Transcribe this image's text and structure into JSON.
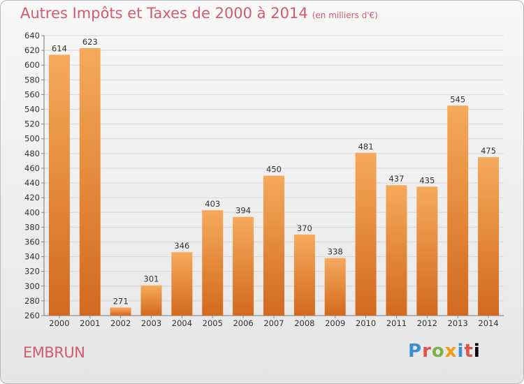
{
  "header": {
    "title": "Autres Impôts et Taxes de 2000 à 2014",
    "unit": "(en milliers d'€)"
  },
  "footer": {
    "place": "EMBRUN",
    "logo": "Proxiti"
  },
  "colors": {
    "bar_light": "#f6aa5c",
    "bar_dark": "#d2691e",
    "title": "#d05c6c"
  },
  "chart_data": {
    "type": "bar",
    "title": "Autres Impôts et Taxes de 2000 à 2014",
    "subtitle": "(en milliers d'€)",
    "xlabel": "",
    "ylabel": "",
    "categories": [
      "2000",
      "2001",
      "2002",
      "2003",
      "2004",
      "2005",
      "2006",
      "2007",
      "2008",
      "2009",
      "2010",
      "2011",
      "2012",
      "2013",
      "2014"
    ],
    "values": [
      614,
      623,
      271,
      301,
      346,
      403,
      394,
      450,
      370,
      338,
      481,
      437,
      435,
      545,
      475
    ],
    "ylim": [
      260,
      640
    ],
    "yticks": [
      260,
      280,
      300,
      320,
      340,
      360,
      380,
      400,
      420,
      440,
      460,
      480,
      500,
      520,
      540,
      560,
      580,
      600,
      620,
      640
    ],
    "grid": true,
    "legend": "none"
  }
}
